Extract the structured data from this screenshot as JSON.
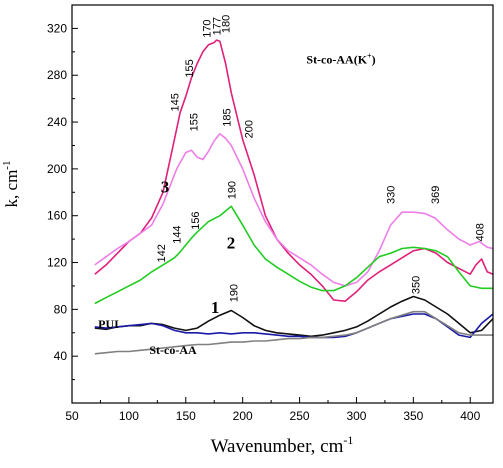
{
  "chart_data": {
    "type": "line",
    "xlabel": "Wavenumber, cm",
    "xlabel_sup": "-1",
    "ylabel": "k, cm",
    "ylabel_sup": "-1",
    "xlim": [
      50,
      420
    ],
    "ylim": [
      0,
      340
    ],
    "xticks": [
      50,
      100,
      150,
      200,
      250,
      300,
      350,
      400
    ],
    "yticks": [
      40,
      80,
      120,
      160,
      200,
      240,
      280,
      320
    ],
    "grid": false,
    "series": [
      {
        "name": "St-co-AA(K+)",
        "color": "#e0207a",
        "x": [
          70,
          80,
          90,
          100,
          110,
          120,
          130,
          140,
          145,
          150,
          155,
          160,
          165,
          170,
          175,
          177,
          180,
          185,
          190,
          200,
          210,
          220,
          230,
          240,
          250,
          260,
          270,
          280,
          290,
          300,
          310,
          320,
          330,
          340,
          350,
          360,
          370,
          380,
          390,
          400,
          405,
          410,
          415,
          420
        ],
        "y": [
          110,
          118,
          128,
          138,
          145,
          158,
          180,
          225,
          248,
          262,
          278,
          290,
          300,
          306,
          308,
          310,
          309,
          290,
          265,
          225,
          195,
          160,
          140,
          128,
          118,
          110,
          100,
          88,
          87,
          95,
          105,
          112,
          118,
          124,
          130,
          132,
          128,
          120,
          115,
          110,
          118,
          123,
          112,
          110
        ]
      },
      {
        "name": "3",
        "color": "#ee7ee8",
        "x": [
          70,
          80,
          90,
          100,
          110,
          120,
          130,
          142,
          150,
          155,
          160,
          165,
          170,
          175,
          180,
          185,
          190,
          200,
          210,
          220,
          230,
          240,
          250,
          260,
          270,
          280,
          290,
          300,
          310,
          320,
          330,
          340,
          350,
          360,
          369,
          380,
          390,
          400,
          408,
          415,
          420
        ],
        "y": [
          118,
          125,
          132,
          138,
          145,
          152,
          170,
          200,
          214,
          216,
          210,
          208,
          215,
          224,
          230,
          226,
          220,
          200,
          175,
          155,
          140,
          130,
          124,
          118,
          110,
          103,
          100,
          103,
          112,
          130,
          152,
          163,
          163,
          162,
          158,
          148,
          140,
          135,
          138,
          133,
          132
        ]
      },
      {
        "name": "2",
        "color": "#22cc22",
        "x": [
          70,
          80,
          90,
          100,
          110,
          120,
          130,
          140,
          144,
          150,
          156,
          160,
          170,
          180,
          190,
          200,
          210,
          220,
          230,
          240,
          250,
          260,
          270,
          280,
          290,
          300,
          310,
          320,
          330,
          340,
          350,
          360,
          370,
          380,
          390,
          400,
          410,
          420
        ],
        "y": [
          85,
          90,
          95,
          100,
          105,
          112,
          118,
          124,
          128,
          135,
          142,
          146,
          155,
          160,
          168,
          152,
          135,
          123,
          116,
          110,
          104,
          99,
          96,
          96,
          100,
          107,
          116,
          125,
          128,
          132,
          133,
          132,
          130,
          125,
          112,
          100,
          98,
          98
        ]
      },
      {
        "name": "1",
        "color": "#111111",
        "x": [
          70,
          80,
          90,
          100,
          110,
          120,
          130,
          140,
          150,
          160,
          170,
          180,
          190,
          200,
          210,
          220,
          230,
          240,
          250,
          260,
          270,
          280,
          290,
          300,
          310,
          320,
          330,
          340,
          350,
          360,
          370,
          380,
          390,
          400,
          410,
          420
        ],
        "y": [
          64,
          63,
          65,
          66,
          66,
          68,
          67,
          64,
          62,
          64,
          70,
          75,
          79,
          73,
          66,
          62,
          60,
          59,
          58,
          57,
          58,
          60,
          62,
          65,
          70,
          76,
          82,
          87,
          91,
          88,
          82,
          76,
          68,
          60,
          62,
          72
        ]
      },
      {
        "name": "PUI",
        "color": "#1a1aa8",
        "x": [
          70,
          80,
          90,
          100,
          110,
          120,
          130,
          140,
          150,
          160,
          170,
          180,
          190,
          200,
          210,
          220,
          230,
          240,
          250,
          260,
          270,
          280,
          290,
          300,
          310,
          320,
          330,
          340,
          350,
          360,
          370,
          380,
          390,
          400,
          410,
          420
        ],
        "y": [
          65,
          64,
          65,
          66,
          67,
          68,
          66,
          62,
          60,
          60,
          59,
          60,
          59,
          60,
          60,
          59,
          58,
          57,
          57,
          56,
          56,
          56,
          57,
          60,
          64,
          68,
          72,
          74,
          76,
          76,
          72,
          65,
          58,
          56,
          68,
          76
        ]
      },
      {
        "name": "St-co-AA",
        "color": "#808080",
        "x": [
          70,
          80,
          90,
          100,
          110,
          120,
          130,
          140,
          150,
          160,
          170,
          180,
          190,
          200,
          210,
          220,
          230,
          240,
          250,
          260,
          270,
          280,
          290,
          300,
          310,
          320,
          330,
          340,
          350,
          360,
          370,
          380,
          390,
          400,
          410,
          420
        ],
        "y": [
          42,
          43,
          44,
          44,
          45,
          46,
          47,
          48,
          49,
          50,
          50,
          51,
          52,
          52,
          53,
          53,
          54,
          55,
          55,
          56,
          56,
          57,
          58,
          60,
          64,
          68,
          72,
          75,
          78,
          78,
          72,
          66,
          60,
          58,
          58,
          58
        ]
      }
    ],
    "curve_labels": [
      {
        "text": "St-co-AA(K",
        "sup": "+",
        "suffix": ")",
        "x": 256,
        "y": 290
      },
      {
        "text": "3",
        "x": 128,
        "y": 180
      },
      {
        "text": "2",
        "x": 186,
        "y": 132
      },
      {
        "text": "1",
        "x": 172,
        "y": 77
      },
      {
        "text": "PUI",
        "x": 73,
        "y": 64
      },
      {
        "text": "St-co-AA",
        "x": 118,
        "y": 42
      }
    ],
    "peak_labels": [
      {
        "text": "170",
        "x": 168,
        "y": 312
      },
      {
        "text": "177",
        "x": 177,
        "y": 314
      },
      {
        "text": "180",
        "x": 185,
        "y": 316
      },
      {
        "text": "155",
        "x": 153,
        "y": 278
      },
      {
        "text": "145",
        "x": 140,
        "y": 249
      },
      {
        "text": "155",
        "x": 157,
        "y": 232
      },
      {
        "text": "185",
        "x": 186,
        "y": 236
      },
      {
        "text": "200",
        "x": 205,
        "y": 226
      },
      {
        "text": "190",
        "x": 190,
        "y": 174
      },
      {
        "text": "156",
        "x": 158,
        "y": 148
      },
      {
        "text": "144",
        "x": 142,
        "y": 136
      },
      {
        "text": "142",
        "x": 128,
        "y": 120
      },
      {
        "text": "330",
        "x": 330,
        "y": 170
      },
      {
        "text": "369",
        "x": 369,
        "y": 170
      },
      {
        "text": "408",
        "x": 408,
        "y": 138
      },
      {
        "text": "190",
        "x": 192,
        "y": 86
      },
      {
        "text": "350",
        "x": 352,
        "y": 93
      }
    ]
  }
}
